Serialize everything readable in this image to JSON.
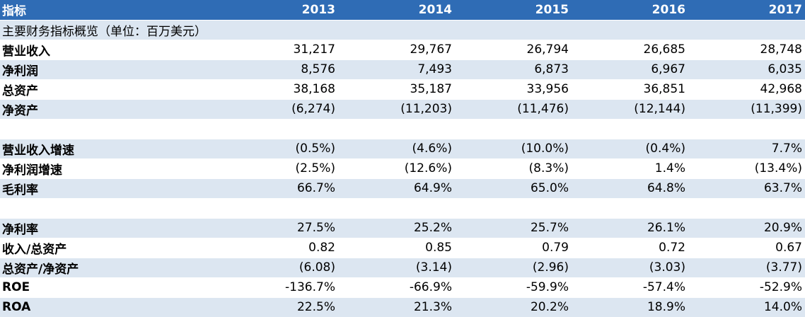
{
  "table": {
    "header": [
      "指标",
      "2013",
      "2014",
      "2015",
      "2016",
      "2017"
    ],
    "subtitle": "主要财务指标概览（单位：百万美元）",
    "sections": [
      {
        "rows": [
          [
            "营业收入",
            "31,217",
            "29,767",
            "26,794",
            "26,685",
            "28,748"
          ],
          [
            "净利润",
            "8,576",
            "7,493",
            "6,873",
            "6,967",
            "6,035"
          ],
          [
            "总资产",
            "38,168",
            "35,187",
            "33,956",
            "36,851",
            "42,968"
          ],
          [
            "净资产",
            "(6,274)",
            "(11,203)",
            "(11,476)",
            "(12,144)",
            "(11,399)"
          ]
        ]
      },
      {
        "rows": [
          [
            "营业收入增速",
            "(0.5%)",
            "(4.6%)",
            "(10.0%)",
            "(0.4%)",
            "7.7%"
          ],
          [
            "净利润增速",
            "(2.5%)",
            "(12.6%)",
            "(8.3%)",
            "1.4%",
            "(13.4%)"
          ],
          [
            "毛利率",
            "66.7%",
            "64.9%",
            "65.0%",
            "64.8%",
            "63.7%"
          ]
        ]
      },
      {
        "rows": [
          [
            "净利率",
            "27.5%",
            "25.2%",
            "25.7%",
            "26.1%",
            "20.9%"
          ],
          [
            "收入/总资产",
            "0.82",
            "0.85",
            "0.79",
            "0.72",
            "0.67"
          ],
          [
            "总资产/净资产",
            "(6.08)",
            "(3.14)",
            "(2.96)",
            "(3.03)",
            "(3.77)"
          ],
          [
            "ROE",
            "-136.7%",
            "-66.9%",
            "-59.9%",
            "-57.4%",
            "-52.9%"
          ],
          [
            "ROA",
            "22.5%",
            "21.3%",
            "20.2%",
            "18.9%",
            "14.0%"
          ]
        ]
      }
    ]
  }
}
